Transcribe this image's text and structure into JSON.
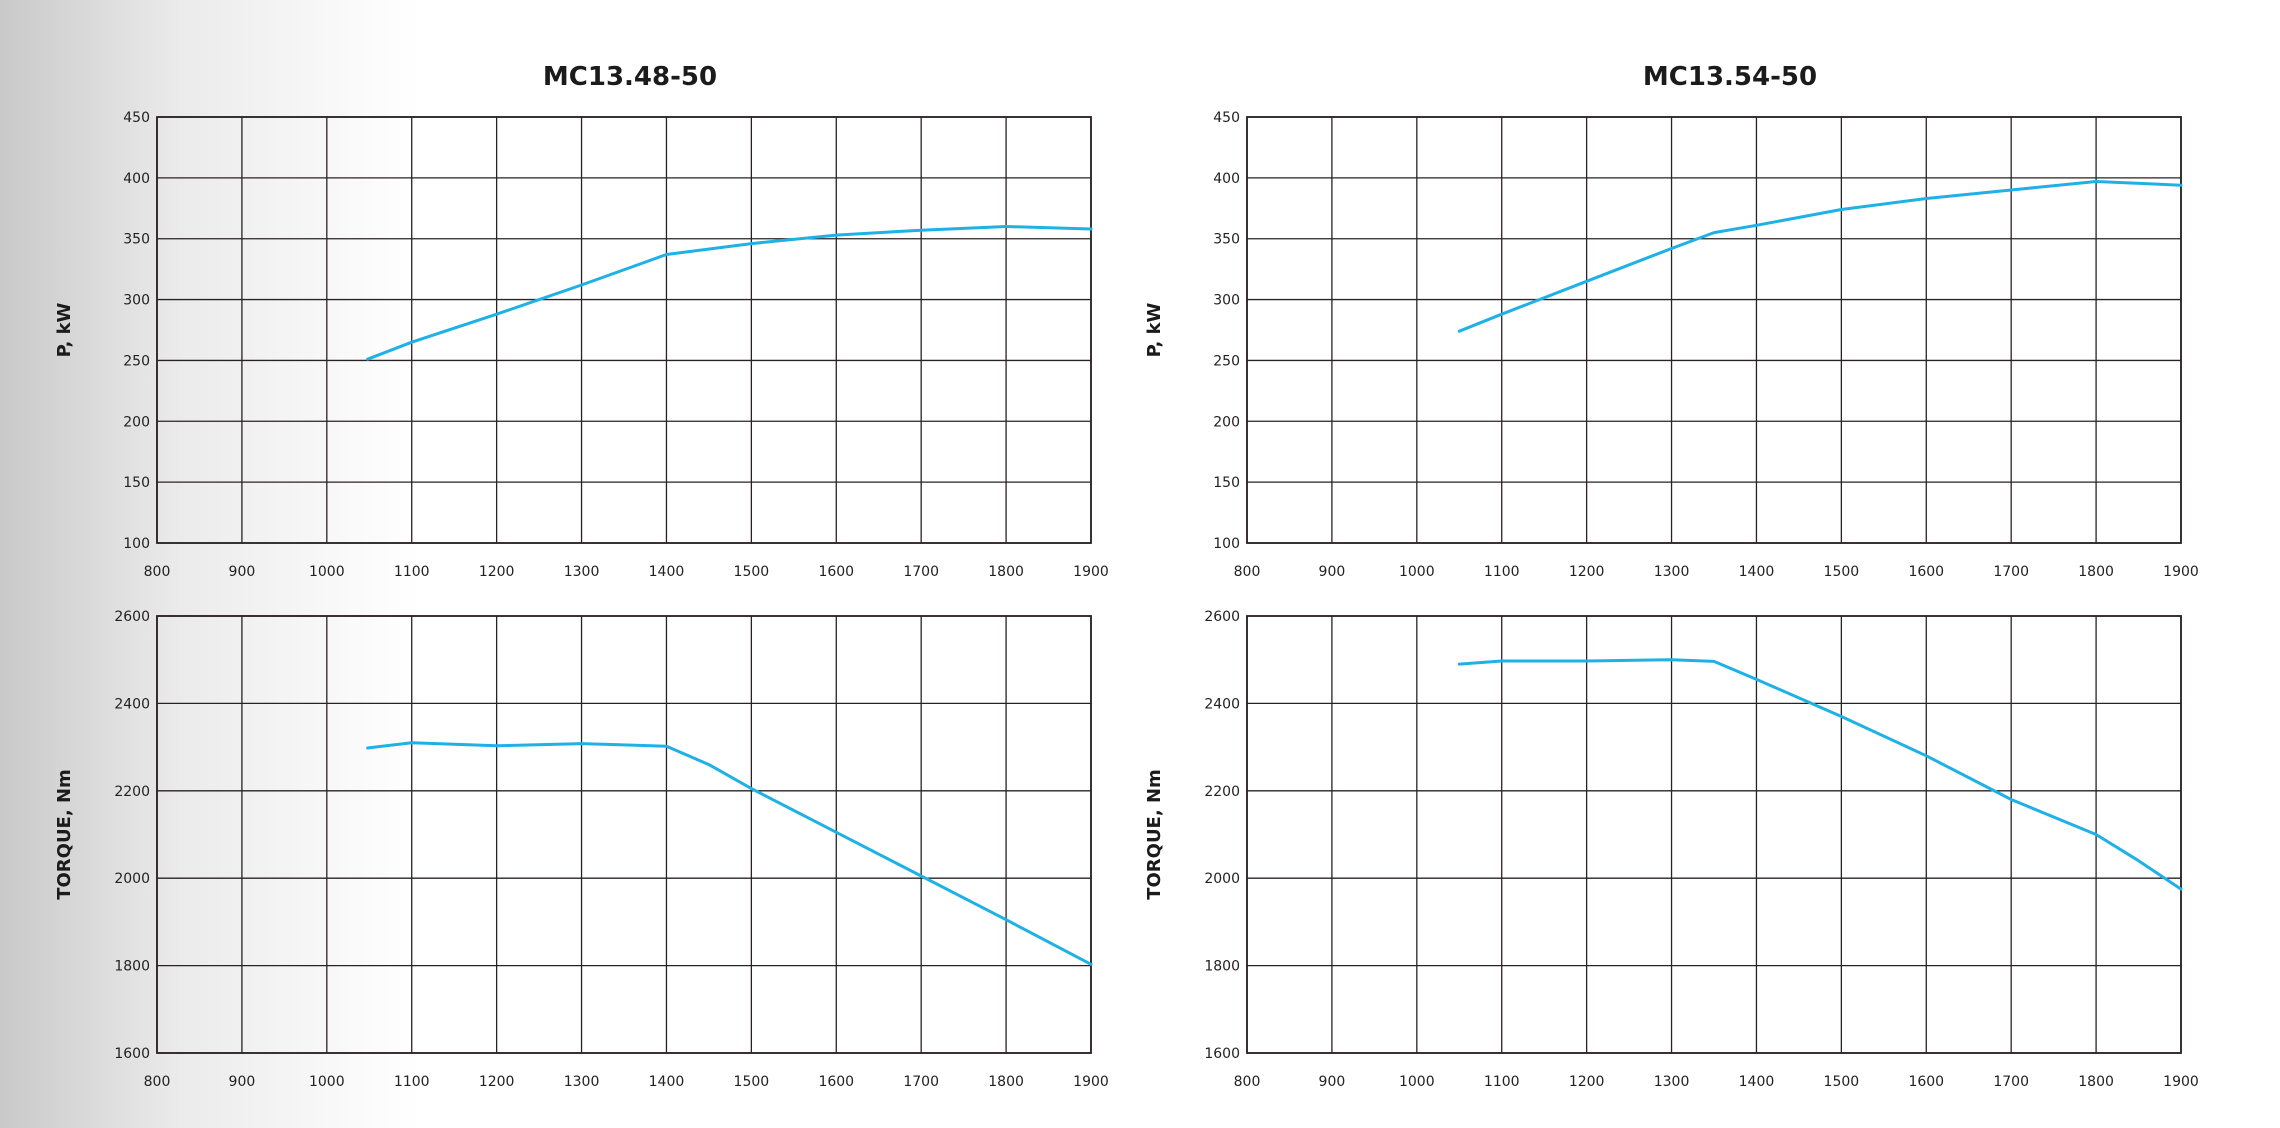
{
  "chart_data": [
    {
      "type": "line",
      "title": "MC13.48-50",
      "ylabel": "P, kW",
      "xlabel": "",
      "xlim": [
        800,
        1900
      ],
      "ylim": [
        100,
        450
      ],
      "x_ticks": [
        800,
        900,
        1000,
        1100,
        1200,
        1300,
        1400,
        1500,
        1600,
        1700,
        1800,
        1900
      ],
      "y_ticks": [
        100,
        150,
        200,
        250,
        300,
        350,
        400,
        450
      ],
      "grid": true,
      "series": [
        {
          "color": "#1eb1e6",
          "x": [
            1048,
            1100,
            1200,
            1300,
            1400,
            1500,
            1600,
            1700,
            1800,
            1900
          ],
          "y": [
            251,
            265,
            288,
            312,
            337,
            346,
            353,
            357,
            360,
            358
          ]
        }
      ]
    },
    {
      "type": "line",
      "title": "",
      "ylabel": "TORQUE, Nm",
      "xlabel": "",
      "xlim": [
        800,
        1900
      ],
      "ylim": [
        1600,
        2600
      ],
      "x_ticks": [
        800,
        900,
        1000,
        1100,
        1200,
        1300,
        1400,
        1500,
        1600,
        1700,
        1800,
        1900
      ],
      "y_ticks": [
        1600,
        1800,
        2000,
        2200,
        2400,
        2600
      ],
      "grid": true,
      "series": [
        {
          "color": "#1eb1e6",
          "x": [
            1048,
            1100,
            1200,
            1300,
            1400,
            1450,
            1500,
            1600,
            1700,
            1800,
            1900
          ],
          "y": [
            2298,
            2310,
            2303,
            2308,
            2302,
            2260,
            2205,
            2105,
            2005,
            1905,
            1803
          ]
        }
      ]
    },
    {
      "type": "line",
      "title": "MC13.54-50",
      "ylabel": "P, kW",
      "xlabel": "",
      "xlim": [
        800,
        1900
      ],
      "ylim": [
        100,
        450
      ],
      "x_ticks": [
        800,
        900,
        1000,
        1100,
        1200,
        1300,
        1400,
        1500,
        1600,
        1700,
        1800,
        1900
      ],
      "y_ticks": [
        100,
        150,
        200,
        250,
        300,
        350,
        400,
        450
      ],
      "grid": true,
      "series": [
        {
          "color": "#1eb1e6",
          "x": [
            1050,
            1100,
            1200,
            1300,
            1350,
            1400,
            1500,
            1600,
            1700,
            1800,
            1900
          ],
          "y": [
            274,
            288,
            315,
            342,
            355,
            361,
            374,
            383,
            390,
            397,
            394
          ]
        }
      ]
    },
    {
      "type": "line",
      "title": "",
      "ylabel": "TORQUE, Nm",
      "xlabel": "",
      "xlim": [
        800,
        1900
      ],
      "ylim": [
        1600,
        2600
      ],
      "x_ticks": [
        800,
        900,
        1000,
        1100,
        1200,
        1300,
        1400,
        1500,
        1600,
        1700,
        1800,
        1900
      ],
      "y_ticks": [
        1600,
        1800,
        2000,
        2200,
        2400,
        2600
      ],
      "grid": true,
      "series": [
        {
          "color": "#1eb1e6",
          "x": [
            1050,
            1100,
            1200,
            1300,
            1350,
            1400,
            1500,
            1600,
            1700,
            1800,
            1850,
            1900
          ],
          "y": [
            2490,
            2497,
            2497,
            2500,
            2496,
            2455,
            2370,
            2280,
            2180,
            2100,
            2040,
            1975
          ]
        }
      ]
    }
  ]
}
